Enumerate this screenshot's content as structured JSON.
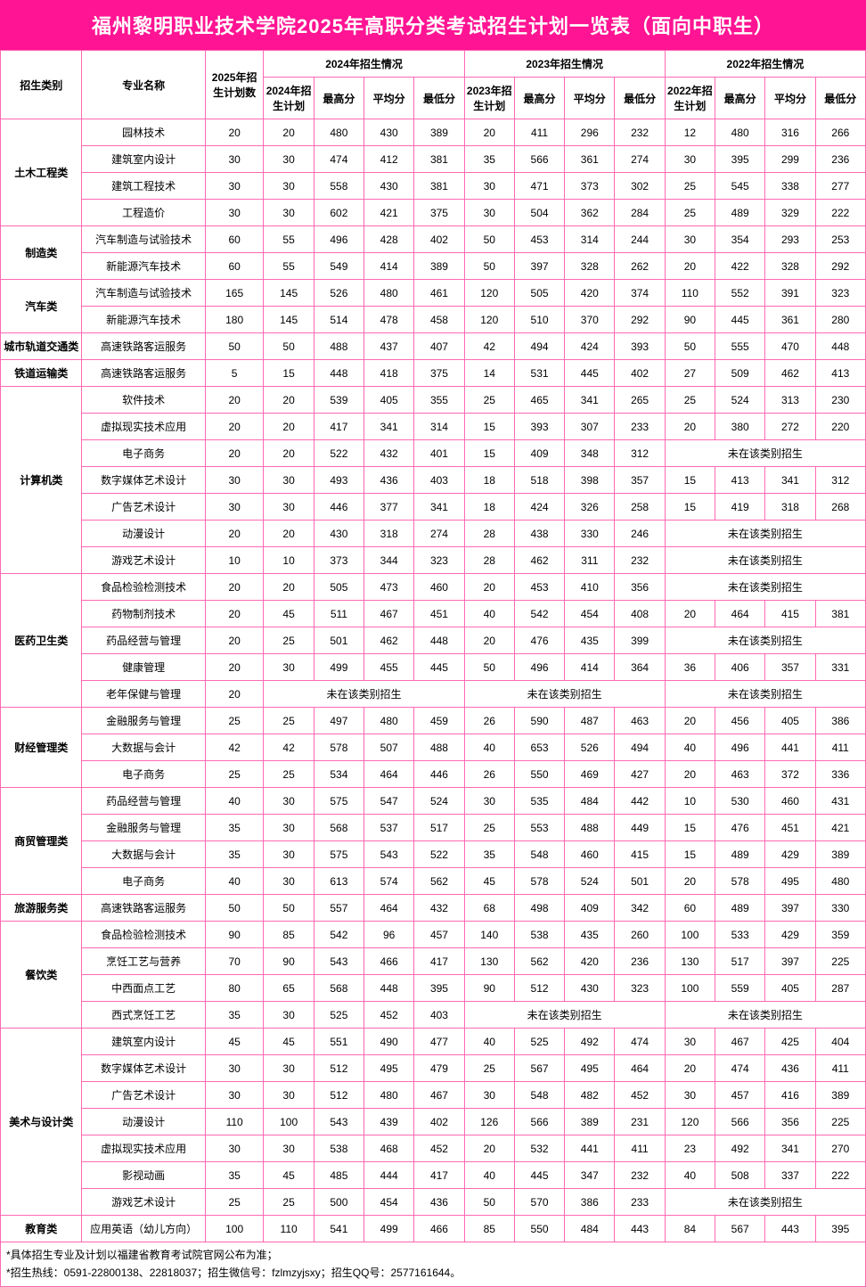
{
  "title": "福州黎明职业技术学院2025年高职分类考试招生计划一览表（面向中职生）",
  "headers": {
    "category": "招生类别",
    "major": "专业名称",
    "plan2025": "2025年招生计划数",
    "y2024": "2024年招生情况",
    "y2023": "2023年招生情况",
    "y2022": "2022年招生情况",
    "plan2024": "2024年招生计划",
    "plan2023": "2023年招生计划",
    "plan2022": "2022年招生计划",
    "max": "最高分",
    "avg": "平均分",
    "min": "最低分"
  },
  "notEnrolled": "未在该类别招生",
  "categories": [
    {
      "name": "土木工程类",
      "rows": [
        {
          "major": "园林技术",
          "p25": "20",
          "y24": [
            "20",
            "480",
            "430",
            "389"
          ],
          "y23": [
            "20",
            "411",
            "296",
            "232"
          ],
          "y22": [
            "12",
            "480",
            "316",
            "266"
          ]
        },
        {
          "major": "建筑室内设计",
          "p25": "30",
          "y24": [
            "30",
            "474",
            "412",
            "381"
          ],
          "y23": [
            "35",
            "566",
            "361",
            "274"
          ],
          "y22": [
            "30",
            "395",
            "299",
            "236"
          ]
        },
        {
          "major": "建筑工程技术",
          "p25": "30",
          "y24": [
            "30",
            "558",
            "430",
            "381"
          ],
          "y23": [
            "30",
            "471",
            "373",
            "302"
          ],
          "y22": [
            "25",
            "545",
            "338",
            "277"
          ]
        },
        {
          "major": "工程造价",
          "p25": "30",
          "y24": [
            "30",
            "602",
            "421",
            "375"
          ],
          "y23": [
            "30",
            "504",
            "362",
            "284"
          ],
          "y22": [
            "25",
            "489",
            "329",
            "222"
          ]
        }
      ]
    },
    {
      "name": "制造类",
      "rows": [
        {
          "major": "汽车制造与试验技术",
          "p25": "60",
          "y24": [
            "55",
            "496",
            "428",
            "402"
          ],
          "y23": [
            "50",
            "453",
            "314",
            "244"
          ],
          "y22": [
            "30",
            "354",
            "293",
            "253"
          ]
        },
        {
          "major": "新能源汽车技术",
          "p25": "60",
          "y24": [
            "55",
            "549",
            "414",
            "389"
          ],
          "y23": [
            "50",
            "397",
            "328",
            "262"
          ],
          "y22": [
            "20",
            "422",
            "328",
            "292"
          ]
        }
      ]
    },
    {
      "name": "汽车类",
      "rows": [
        {
          "major": "汽车制造与试验技术",
          "p25": "165",
          "y24": [
            "145",
            "526",
            "480",
            "461"
          ],
          "y23": [
            "120",
            "505",
            "420",
            "374"
          ],
          "y22": [
            "110",
            "552",
            "391",
            "323"
          ]
        },
        {
          "major": "新能源汽车技术",
          "p25": "180",
          "y24": [
            "145",
            "514",
            "478",
            "458"
          ],
          "y23": [
            "120",
            "510",
            "370",
            "292"
          ],
          "y22": [
            "90",
            "445",
            "361",
            "280"
          ]
        }
      ]
    },
    {
      "name": "城市轨道交通类",
      "rows": [
        {
          "major": "高速铁路客运服务",
          "p25": "50",
          "y24": [
            "50",
            "488",
            "437",
            "407"
          ],
          "y23": [
            "42",
            "494",
            "424",
            "393"
          ],
          "y22": [
            "50",
            "555",
            "470",
            "448"
          ]
        }
      ]
    },
    {
      "name": "铁道运输类",
      "rows": [
        {
          "major": "高速铁路客运服务",
          "p25": "5",
          "y24": [
            "15",
            "448",
            "418",
            "375"
          ],
          "y23": [
            "14",
            "531",
            "445",
            "402"
          ],
          "y22": [
            "27",
            "509",
            "462",
            "413"
          ]
        }
      ]
    },
    {
      "name": "计算机类",
      "rows": [
        {
          "major": "软件技术",
          "p25": "20",
          "y24": [
            "20",
            "539",
            "405",
            "355"
          ],
          "y23": [
            "25",
            "465",
            "341",
            "265"
          ],
          "y22": [
            "25",
            "524",
            "313",
            "230"
          ]
        },
        {
          "major": "虚拟现实技术应用",
          "p25": "20",
          "y24": [
            "20",
            "417",
            "341",
            "314"
          ],
          "y23": [
            "15",
            "393",
            "307",
            "233"
          ],
          "y22": [
            "20",
            "380",
            "272",
            "220"
          ]
        },
        {
          "major": "电子商务",
          "p25": "20",
          "y24": [
            "20",
            "522",
            "432",
            "401"
          ],
          "y23": [
            "15",
            "409",
            "348",
            "312"
          ],
          "y22": "NE"
        },
        {
          "major": "数字媒体艺术设计",
          "p25": "30",
          "y24": [
            "30",
            "493",
            "436",
            "403"
          ],
          "y23": [
            "18",
            "518",
            "398",
            "357"
          ],
          "y22": [
            "15",
            "413",
            "341",
            "312"
          ]
        },
        {
          "major": "广告艺术设计",
          "p25": "30",
          "y24": [
            "30",
            "446",
            "377",
            "341"
          ],
          "y23": [
            "18",
            "424",
            "326",
            "258"
          ],
          "y22": [
            "15",
            "419",
            "318",
            "268"
          ]
        },
        {
          "major": "动漫设计",
          "p25": "20",
          "y24": [
            "20",
            "430",
            "318",
            "274"
          ],
          "y23": [
            "28",
            "438",
            "330",
            "246"
          ],
          "y22": "NE"
        },
        {
          "major": "游戏艺术设计",
          "p25": "10",
          "y24": [
            "10",
            "373",
            "344",
            "323"
          ],
          "y23": [
            "28",
            "462",
            "311",
            "232"
          ],
          "y22": "NE"
        }
      ]
    },
    {
      "name": "医药卫生类",
      "rows": [
        {
          "major": "食品检验检测技术",
          "p25": "20",
          "y24": [
            "20",
            "505",
            "473",
            "460"
          ],
          "y23": [
            "20",
            "453",
            "410",
            "356"
          ],
          "y22": "NE"
        },
        {
          "major": "药物制剂技术",
          "p25": "20",
          "y24": [
            "45",
            "511",
            "467",
            "451"
          ],
          "y23": [
            "40",
            "542",
            "454",
            "408"
          ],
          "y22": [
            "20",
            "464",
            "415",
            "381"
          ]
        },
        {
          "major": "药品经营与管理",
          "p25": "20",
          "y24": [
            "25",
            "501",
            "462",
            "448"
          ],
          "y23": [
            "20",
            "476",
            "435",
            "399"
          ],
          "y22": "NE"
        },
        {
          "major": "健康管理",
          "p25": "20",
          "y24": [
            "30",
            "499",
            "455",
            "445"
          ],
          "y23": [
            "50",
            "496",
            "414",
            "364"
          ],
          "y22": [
            "36",
            "406",
            "357",
            "331"
          ]
        },
        {
          "major": "老年保健与管理",
          "p25": "20",
          "y24": "NE",
          "y23": "NE",
          "y22": "NE"
        }
      ]
    },
    {
      "name": "财经管理类",
      "rows": [
        {
          "major": "金融服务与管理",
          "p25": "25",
          "y24": [
            "25",
            "497",
            "480",
            "459"
          ],
          "y23": [
            "26",
            "590",
            "487",
            "463"
          ],
          "y22": [
            "20",
            "456",
            "405",
            "386"
          ]
        },
        {
          "major": "大数据与会计",
          "p25": "42",
          "y24": [
            "42",
            "578",
            "507",
            "488"
          ],
          "y23": [
            "40",
            "653",
            "526",
            "494"
          ],
          "y22": [
            "40",
            "496",
            "441",
            "411"
          ]
        },
        {
          "major": "电子商务",
          "p25": "25",
          "y24": [
            "25",
            "534",
            "464",
            "446"
          ],
          "y23": [
            "26",
            "550",
            "469",
            "427"
          ],
          "y22": [
            "20",
            "463",
            "372",
            "336"
          ]
        }
      ]
    },
    {
      "name": "商贸管理类",
      "rows": [
        {
          "major": "药品经营与管理",
          "p25": "40",
          "y24": [
            "30",
            "575",
            "547",
            "524"
          ],
          "y23": [
            "30",
            "535",
            "484",
            "442"
          ],
          "y22": [
            "10",
            "530",
            "460",
            "431"
          ]
        },
        {
          "major": "金融服务与管理",
          "p25": "35",
          "y24": [
            "30",
            "568",
            "537",
            "517"
          ],
          "y23": [
            "25",
            "553",
            "488",
            "449"
          ],
          "y22": [
            "15",
            "476",
            "451",
            "421"
          ]
        },
        {
          "major": "大数据与会计",
          "p25": "35",
          "y24": [
            "30",
            "575",
            "543",
            "522"
          ],
          "y23": [
            "35",
            "548",
            "460",
            "415"
          ],
          "y22": [
            "15",
            "489",
            "429",
            "389"
          ]
        },
        {
          "major": "电子商务",
          "p25": "40",
          "y24": [
            "30",
            "613",
            "574",
            "562"
          ],
          "y23": [
            "45",
            "578",
            "524",
            "501"
          ],
          "y22": [
            "20",
            "578",
            "495",
            "480"
          ]
        }
      ]
    },
    {
      "name": "旅游服务类",
      "rows": [
        {
          "major": "高速铁路客运服务",
          "p25": "50",
          "y24": [
            "50",
            "557",
            "464",
            "432"
          ],
          "y23": [
            "68",
            "498",
            "409",
            "342"
          ],
          "y22": [
            "60",
            "489",
            "397",
            "330"
          ]
        }
      ]
    },
    {
      "name": "餐饮类",
      "rows": [
        {
          "major": "食品检验检测技术",
          "p25": "90",
          "y24": [
            "85",
            "542",
            "96",
            "457"
          ],
          "y23": [
            "140",
            "538",
            "435",
            "260"
          ],
          "y22": [
            "100",
            "533",
            "429",
            "359"
          ]
        },
        {
          "major": "烹饪工艺与营养",
          "p25": "70",
          "y24": [
            "90",
            "543",
            "466",
            "417"
          ],
          "y23": [
            "130",
            "562",
            "420",
            "236"
          ],
          "y22": [
            "130",
            "517",
            "397",
            "225"
          ]
        },
        {
          "major": "中西面点工艺",
          "p25": "80",
          "y24": [
            "65",
            "568",
            "448",
            "395"
          ],
          "y23": [
            "90",
            "512",
            "430",
            "323"
          ],
          "y22": [
            "100",
            "559",
            "405",
            "287"
          ]
        },
        {
          "major": "西式烹饪工艺",
          "p25": "35",
          "y24": [
            "30",
            "525",
            "452",
            "403"
          ],
          "y23": "NE",
          "y22": "NE"
        }
      ]
    },
    {
      "name": "美术与设计类",
      "rows": [
        {
          "major": "建筑室内设计",
          "p25": "45",
          "y24": [
            "45",
            "551",
            "490",
            "477"
          ],
          "y23": [
            "40",
            "525",
            "492",
            "474"
          ],
          "y22": [
            "30",
            "467",
            "425",
            "404"
          ]
        },
        {
          "major": "数字媒体艺术设计",
          "p25": "30",
          "y24": [
            "30",
            "512",
            "495",
            "479"
          ],
          "y23": [
            "25",
            "567",
            "495",
            "464"
          ],
          "y22": [
            "20",
            "474",
            "436",
            "411"
          ]
        },
        {
          "major": "广告艺术设计",
          "p25": "30",
          "y24": [
            "30",
            "512",
            "480",
            "467"
          ],
          "y23": [
            "30",
            "548",
            "482",
            "452"
          ],
          "y22": [
            "30",
            "457",
            "416",
            "389"
          ]
        },
        {
          "major": "动漫设计",
          "p25": "110",
          "y24": [
            "100",
            "543",
            "439",
            "402"
          ],
          "y23": [
            "126",
            "566",
            "389",
            "231"
          ],
          "y22": [
            "120",
            "566",
            "356",
            "225"
          ]
        },
        {
          "major": "虚拟现实技术应用",
          "p25": "30",
          "y24": [
            "30",
            "538",
            "468",
            "452"
          ],
          "y23": [
            "20",
            "532",
            "441",
            "411"
          ],
          "y22": [
            "23",
            "492",
            "341",
            "270"
          ]
        },
        {
          "major": "影视动画",
          "p25": "35",
          "y24": [
            "45",
            "485",
            "444",
            "417"
          ],
          "y23": [
            "40",
            "445",
            "347",
            "232"
          ],
          "y22": [
            "40",
            "508",
            "337",
            "222"
          ]
        },
        {
          "major": "游戏艺术设计",
          "p25": "25",
          "y24": [
            "25",
            "500",
            "454",
            "436"
          ],
          "y23": [
            "50",
            "570",
            "386",
            "233"
          ],
          "y22": "NE"
        }
      ]
    },
    {
      "name": "教育类",
      "rows": [
        {
          "major": "应用英语（幼儿方向）",
          "p25": "100",
          "y24": [
            "110",
            "541",
            "499",
            "466"
          ],
          "y23": [
            "85",
            "550",
            "484",
            "443"
          ],
          "y22": [
            "84",
            "567",
            "443",
            "395"
          ]
        }
      ]
    }
  ],
  "footer": {
    "line1": "*具体招生专业及计划以福建省教育考试院官网公布为准；",
    "line2": "*招生热线：0591-22800138、22818037；招生微信号：fzlmzyjsxy；招生QQ号：2577161644。"
  }
}
